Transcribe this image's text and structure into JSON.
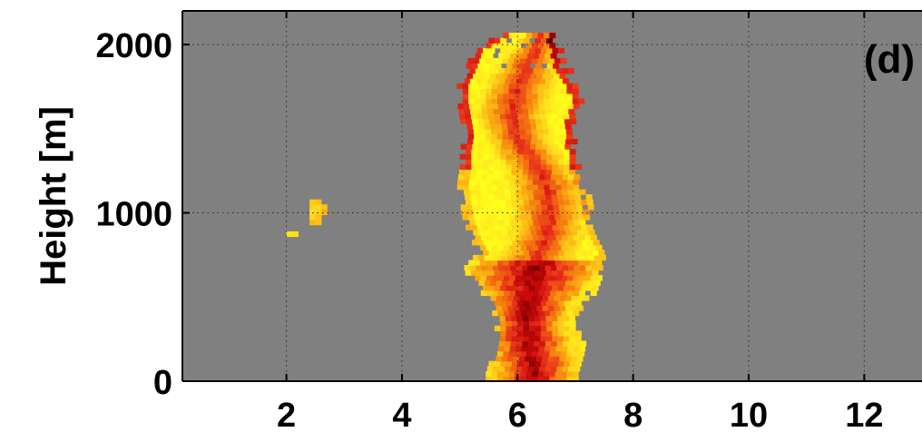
{
  "chart_data": {
    "type": "heatmap",
    "panel_label": "(d)",
    "xlabel": "",
    "ylabel": "Height [m]",
    "xlim": [
      0.2,
      13.0
    ],
    "ylim": [
      0,
      2200
    ],
    "x_ticks": [
      2,
      4,
      6,
      8,
      10,
      12
    ],
    "y_ticks": [
      0,
      1000,
      2000
    ],
    "grid": true,
    "background_color": "#808080",
    "colormap": "hot",
    "colormap_stops": [
      "#3a0000",
      "#8b0000",
      "#c80a0a",
      "#e8321a",
      "#f57a10",
      "#fbb514",
      "#ffe21e",
      "#ffff1a"
    ],
    "cell_size": {
      "dx": 0.1,
      "dy": 30
    },
    "plume_profile": [
      {
        "y": 30,
        "x_left": 5.45,
        "x_right": 6.95,
        "core": 6.25
      },
      {
        "y": 150,
        "x_left": 5.55,
        "x_right": 7.0,
        "core": 6.2
      },
      {
        "y": 250,
        "x_left": 5.6,
        "x_right": 7.05,
        "core": 6.15
      },
      {
        "y": 350,
        "x_left": 5.6,
        "x_right": 6.95,
        "core": 6.1
      },
      {
        "y": 450,
        "x_left": 5.5,
        "x_right": 7.05,
        "core": 6.15
      },
      {
        "y": 560,
        "x_left": 5.25,
        "x_right": 7.35,
        "core": 6.2
      },
      {
        "y": 650,
        "x_left": 5.05,
        "x_right": 7.45,
        "core": 6.25
      },
      {
        "y": 750,
        "x_left": 5.3,
        "x_right": 7.4,
        "core": 6.35
      },
      {
        "y": 850,
        "x_left": 5.15,
        "x_right": 7.3,
        "core": 6.45
      },
      {
        "y": 950,
        "x_left": 5.05,
        "x_right": 7.2,
        "core": 6.5
      },
      {
        "y": 1050,
        "x_left": 5.0,
        "x_right": 7.15,
        "core": 6.5
      },
      {
        "y": 1150,
        "x_left": 4.95,
        "x_right": 7.05,
        "core": 6.45
      },
      {
        "y": 1250,
        "x_left": 5.0,
        "x_right": 6.95,
        "core": 6.3
      },
      {
        "y": 1350,
        "x_left": 5.0,
        "x_right": 6.95,
        "core": 6.1
      },
      {
        "y": 1450,
        "x_left": 5.05,
        "x_right": 6.9,
        "core": 5.95
      },
      {
        "y": 1550,
        "x_left": 5.0,
        "x_right": 6.95,
        "core": 5.85
      },
      {
        "y": 1650,
        "x_left": 4.95,
        "x_right": 7.05,
        "core": 5.9
      },
      {
        "y": 1750,
        "x_left": 4.95,
        "x_right": 6.95,
        "core": 6.0
      },
      {
        "y": 1850,
        "x_left": 5.1,
        "x_right": 6.75,
        "core": 6.1
      },
      {
        "y": 1950,
        "x_left": 5.2,
        "x_right": 6.7,
        "core": 6.25
      },
      {
        "y": 2040,
        "x_left": 5.65,
        "x_right": 6.6,
        "core": 6.35
      }
    ],
    "isolated_echo": [
      {
        "x": 2.4,
        "y": 1050,
        "value": 0.78
      },
      {
        "x": 2.5,
        "y": 1050,
        "value": 0.74
      },
      {
        "x": 2.4,
        "y": 1020,
        "value": 0.8
      },
      {
        "x": 2.5,
        "y": 1020,
        "value": 0.82
      },
      {
        "x": 2.6,
        "y": 1020,
        "value": 0.76
      },
      {
        "x": 2.4,
        "y": 990,
        "value": 0.84
      },
      {
        "x": 2.5,
        "y": 990,
        "value": 0.8
      },
      {
        "x": 2.6,
        "y": 990,
        "value": 0.7
      },
      {
        "x": 2.4,
        "y": 960,
        "value": 0.82
      },
      {
        "x": 2.5,
        "y": 960,
        "value": 0.76
      },
      {
        "x": 2.4,
        "y": 930,
        "value": 0.72
      },
      {
        "x": 2.5,
        "y": 930,
        "value": 0.75
      },
      {
        "x": 2.0,
        "y": 860,
        "value": 0.86
      },
      {
        "x": 2.1,
        "y": 860,
        "value": 0.84
      }
    ]
  }
}
